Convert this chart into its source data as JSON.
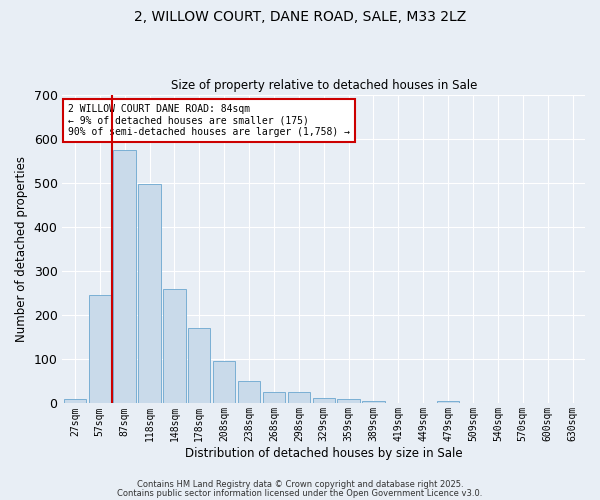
{
  "title1": "2, WILLOW COURT, DANE ROAD, SALE, M33 2LZ",
  "title2": "Size of property relative to detached houses in Sale",
  "xlabel": "Distribution of detached houses by size in Sale",
  "ylabel": "Number of detached properties",
  "categories": [
    "27sqm",
    "57sqm",
    "87sqm",
    "118sqm",
    "148sqm",
    "178sqm",
    "208sqm",
    "238sqm",
    "268sqm",
    "298sqm",
    "329sqm",
    "359sqm",
    "389sqm",
    "419sqm",
    "449sqm",
    "479sqm",
    "509sqm",
    "540sqm",
    "570sqm",
    "600sqm",
    "630sqm"
  ],
  "values": [
    10,
    245,
    575,
    498,
    260,
    170,
    95,
    50,
    25,
    25,
    12,
    10,
    5,
    2,
    0,
    5,
    0,
    0,
    0,
    0,
    0
  ],
  "bar_color": "#c9daea",
  "bar_edge_color": "#7aafd4",
  "vline_color": "#cc0000",
  "ylim": [
    0,
    700
  ],
  "yticks": [
    0,
    100,
    200,
    300,
    400,
    500,
    600,
    700
  ],
  "annotation_text": "2 WILLOW COURT DANE ROAD: 84sqm\n← 9% of detached houses are smaller (175)\n90% of semi-detached houses are larger (1,758) →",
  "annotation_box_color": "#ffffff",
  "annotation_box_edgecolor": "#cc0000",
  "bg_color": "#e8eef5",
  "footer1": "Contains HM Land Registry data © Crown copyright and database right 2025.",
  "footer2": "Contains public sector information licensed under the Open Government Licence v3.0."
}
